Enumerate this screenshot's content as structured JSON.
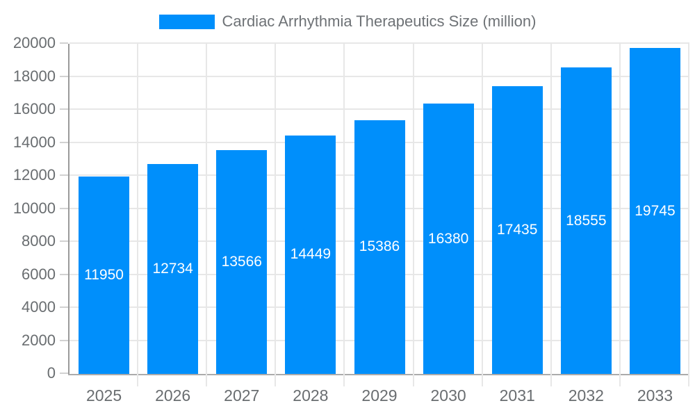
{
  "legend": {
    "label": "Cardiac Arrhythmia Therapeutics Size (million)",
    "swatch_color": "#008FFB"
  },
  "chart_data": {
    "type": "bar",
    "title": "Cardiac Arrhythmia Therapeutics Size (million)",
    "categories": [
      "2025",
      "2026",
      "2027",
      "2028",
      "2029",
      "2030",
      "2031",
      "2032",
      "2033"
    ],
    "values": [
      11950,
      12734,
      13566,
      14449,
      15386,
      16380,
      17435,
      18555,
      19745
    ],
    "xlabel": "",
    "ylabel": "",
    "ylim": [
      0,
      20000
    ],
    "ytick_step": 2000,
    "grid": true,
    "legend_position": "top-center",
    "bar_color": "#008FFB",
    "value_label_color": "#ffffff",
    "value_label_position": "center-inside"
  },
  "colors": {
    "bar": "#008FFB",
    "axis_text": "#696d70",
    "legend_text": "#6e7276",
    "gridline": "#e7e7e7",
    "axis_line": "#9a9a9a"
  }
}
